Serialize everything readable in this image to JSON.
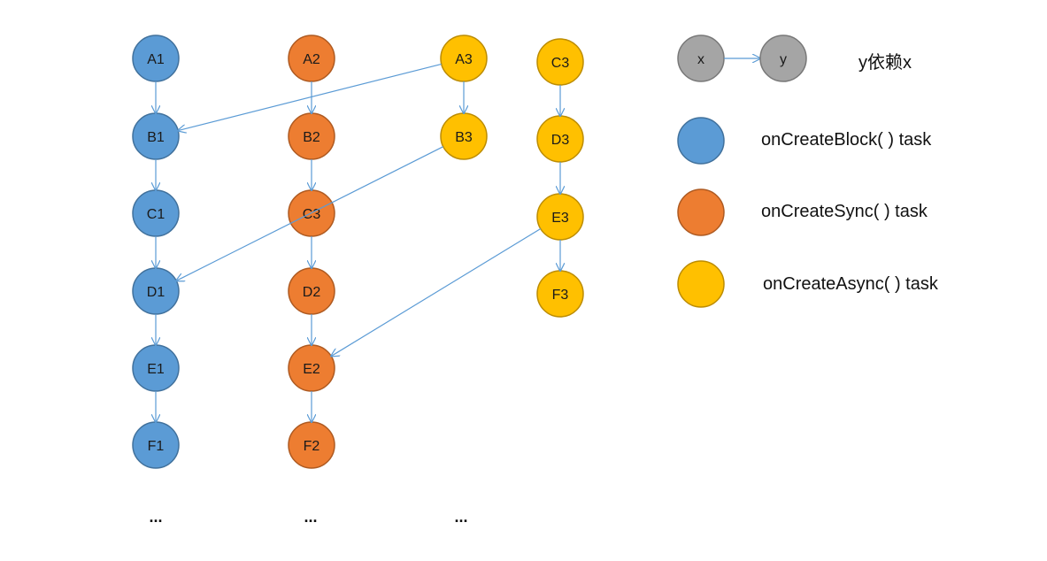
{
  "colors": {
    "block": "#5B9BD5",
    "block_stroke": "#41719C",
    "sync": "#ED7D31",
    "sync_stroke": "#AE5A21",
    "async": "#FFC000",
    "async_stroke": "#BC8C00",
    "gray": "#A5A5A5",
    "gray_stroke": "#787878",
    "edge": "#5B9BD5"
  },
  "nodes": [
    {
      "id": "A1",
      "label": "A1",
      "kind": "block"
    },
    {
      "id": "B1",
      "label": "B1",
      "kind": "block"
    },
    {
      "id": "C1",
      "label": "C1",
      "kind": "block"
    },
    {
      "id": "D1",
      "label": "D1",
      "kind": "block"
    },
    {
      "id": "E1",
      "label": "E1",
      "kind": "block"
    },
    {
      "id": "F1",
      "label": "F1",
      "kind": "block"
    },
    {
      "id": "A2",
      "label": "A2",
      "kind": "sync"
    },
    {
      "id": "B2",
      "label": "B2",
      "kind": "sync"
    },
    {
      "id": "C3s",
      "label": "C3",
      "kind": "sync"
    },
    {
      "id": "D2",
      "label": "D2",
      "kind": "sync"
    },
    {
      "id": "E2",
      "label": "E2",
      "kind": "sync"
    },
    {
      "id": "F2",
      "label": "F2",
      "kind": "sync"
    },
    {
      "id": "A3",
      "label": "A3",
      "kind": "async"
    },
    {
      "id": "B3",
      "label": "B3",
      "kind": "async"
    },
    {
      "id": "C3",
      "label": "C3",
      "kind": "async"
    },
    {
      "id": "D3",
      "label": "D3",
      "kind": "async"
    },
    {
      "id": "E3",
      "label": "E3",
      "kind": "async"
    },
    {
      "id": "F3",
      "label": "F3",
      "kind": "async"
    }
  ],
  "edges": [
    [
      "A1",
      "B1"
    ],
    [
      "B1",
      "C1"
    ],
    [
      "C1",
      "D1"
    ],
    [
      "D1",
      "E1"
    ],
    [
      "E1",
      "F1"
    ],
    [
      "A2",
      "B2"
    ],
    [
      "B2",
      "C3s"
    ],
    [
      "C3s",
      "D2"
    ],
    [
      "D2",
      "E2"
    ],
    [
      "E2",
      "F2"
    ],
    [
      "A3",
      "B3"
    ],
    [
      "A3",
      "B1"
    ],
    [
      "B3",
      "D1"
    ],
    [
      "C3",
      "D3"
    ],
    [
      "D3",
      "E3"
    ],
    [
      "E3",
      "F3"
    ],
    [
      "E3",
      "E2"
    ]
  ],
  "ellipses": [
    "...",
    "...",
    "..."
  ],
  "legend": {
    "dependency": {
      "from": "x",
      "to": "y",
      "text": "y依赖x"
    },
    "items": [
      {
        "kind": "block",
        "text": "onCreateBlock( )   task"
      },
      {
        "kind": "sync",
        "text": "onCreateSync( )   task"
      },
      {
        "kind": "async",
        "text": "onCreateAsync( )   task"
      }
    ]
  }
}
